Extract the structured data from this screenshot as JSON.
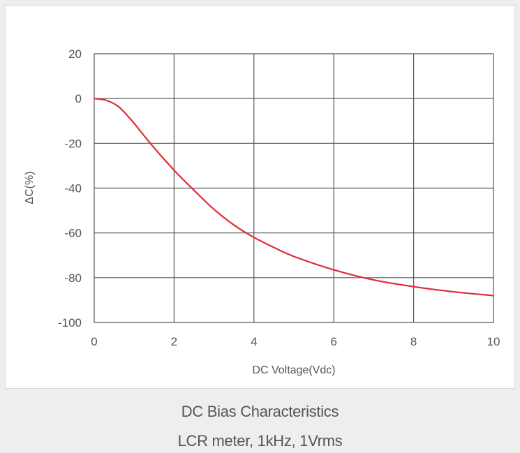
{
  "caption": {
    "title": "DC Bias Characteristics",
    "subtitle": "LCR meter, 1kHz, 1Vrms"
  },
  "chart_data": {
    "type": "line",
    "title": "",
    "xlabel": "DC Voltage(Vdc)",
    "ylabel": "ΔC(%)",
    "xlim": [
      0,
      10
    ],
    "ylim": [
      -100,
      20
    ],
    "xticks": [
      0,
      2,
      4,
      6,
      8,
      10
    ],
    "yticks": [
      20,
      0,
      -20,
      -40,
      -60,
      -80,
      -100
    ],
    "grid": true,
    "colors": {
      "line": "#e02b35",
      "grid": "#555555",
      "text": "#555555"
    },
    "series": [
      {
        "x": [
          0,
          0.3,
          0.6,
          0.9,
          1.2,
          1.5,
          2.0,
          2.5,
          3.0,
          3.5,
          4.0,
          4.5,
          5.0,
          6.0,
          7.0,
          8.0,
          9.0,
          10.0
        ],
        "values": [
          0,
          -0.8,
          -3.5,
          -9,
          -15.5,
          -22,
          -32,
          -41,
          -49.5,
          -56.5,
          -62,
          -66.5,
          -70.5,
          -76.5,
          -81,
          -84,
          -86.3,
          -88
        ]
      }
    ]
  }
}
